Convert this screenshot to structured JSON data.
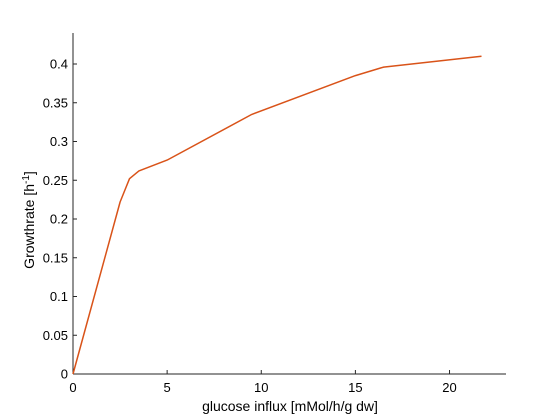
{
  "chart_data": {
    "type": "line",
    "xlabel": "glucose influx [mMol/h/g dw]",
    "ylabel_base": "Growthrate [h",
    "ylabel_sup": "-1",
    "ylabel_close": "]",
    "xlim": [
      0,
      23
    ],
    "ylim": [
      0,
      0.44
    ],
    "x_ticks": [
      0,
      5,
      10,
      15,
      20
    ],
    "y_ticks": [
      0,
      0.05,
      0.1,
      0.15,
      0.2,
      0.25,
      0.3,
      0.35,
      0.4
    ],
    "x_tick_labels": [
      "0",
      "5",
      "10",
      "15",
      "20"
    ],
    "y_tick_labels": [
      "0",
      "0.05",
      "0.1",
      "0.15",
      "0.2",
      "0.25",
      "0.3",
      "0.35",
      "0.4"
    ],
    "grid": false,
    "series": [
      {
        "color": "#d95319",
        "points": [
          [
            0,
            0
          ],
          [
            2.5,
            0.222
          ],
          [
            3.0,
            0.252
          ],
          [
            3.5,
            0.262
          ],
          [
            5.0,
            0.276
          ],
          [
            9.5,
            0.335
          ],
          [
            15.0,
            0.385
          ],
          [
            16.5,
            0.396
          ],
          [
            21.7,
            0.41
          ]
        ]
      }
    ]
  }
}
